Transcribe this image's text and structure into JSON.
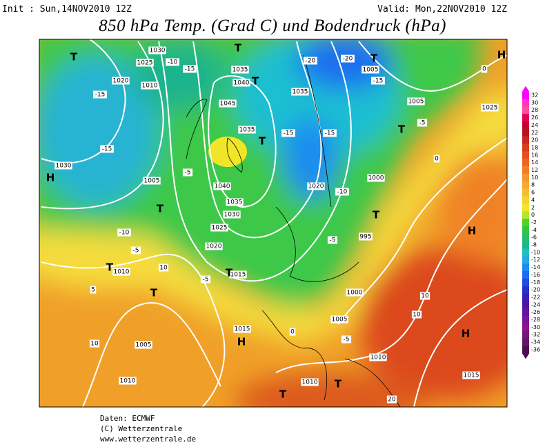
{
  "header": {
    "init": "Init : Sun,14NOV2010 12Z",
    "valid": "Valid: Mon,22NOV2010 12Z",
    "title": "850 hPa Temp. (Grad C) und Bodendruck (hPa)"
  },
  "colorbar": {
    "levels": [
      32,
      30,
      28,
      26,
      24,
      22,
      20,
      18,
      16,
      14,
      12,
      10,
      8,
      6,
      4,
      2,
      0,
      -2,
      -4,
      -6,
      -8,
      -10,
      -12,
      -14,
      -16,
      -18,
      -20,
      -22,
      -24,
      -26,
      -28,
      -30,
      -32,
      -34,
      -36
    ],
    "colors": [
      "#ff00ff",
      "#ff33cc",
      "#ff4d99",
      "#e6005c",
      "#c80032",
      "#b4141e",
      "#c8281e",
      "#dc3c1e",
      "#e6501e",
      "#f06423",
      "#f57d28",
      "#f59632",
      "#f5aa32",
      "#f5be32",
      "#f5d232",
      "#f0e628",
      "#b4e628",
      "#50d228",
      "#32c83c",
      "#28be6e",
      "#1eb48c",
      "#1ebebe",
      "#28aae6",
      "#1e8cf0",
      "#1e6ef0",
      "#1e50dc",
      "#2832c8",
      "#3c1eb4",
      "#5014a0",
      "#6414a0",
      "#7814a0",
      "#8c148c",
      "#781478",
      "#641464",
      "#500a50"
    ]
  },
  "map": {
    "labels": [
      "1030",
      "1025",
      "1020",
      "1010",
      "-10",
      "-15",
      "1035",
      "1040",
      "1045",
      "1035",
      "1035",
      "1005",
      "1005",
      "1025",
      "-15",
      "-15",
      "1030",
      "1005",
      "1040",
      "1035",
      "1030",
      "1025",
      "1020",
      "1015",
      "1010",
      "1005",
      "1010",
      "1015",
      "1000",
      "1005",
      "995",
      "1010",
      "1010",
      "1015",
      "1000",
      "1020",
      "-10",
      "-5",
      "10",
      "5",
      "10",
      "-5",
      "-15",
      "-15",
      "-10",
      "-5",
      "-20",
      "-20",
      "-15",
      "-5",
      "0",
      "0",
      "10",
      "10",
      "-5",
      "0",
      "20",
      "-5"
    ],
    "markers": [
      "H",
      "T",
      "T",
      "H",
      "T",
      "T",
      "T",
      "T",
      "H",
      "T",
      "T",
      "T",
      "T",
      "T",
      "T",
      "H",
      "H",
      "T"
    ]
  },
  "footer": {
    "lines": [
      "Daten: ECMWF",
      "(C) Wetterzentrale",
      "www.wetterzentrale.de"
    ]
  }
}
